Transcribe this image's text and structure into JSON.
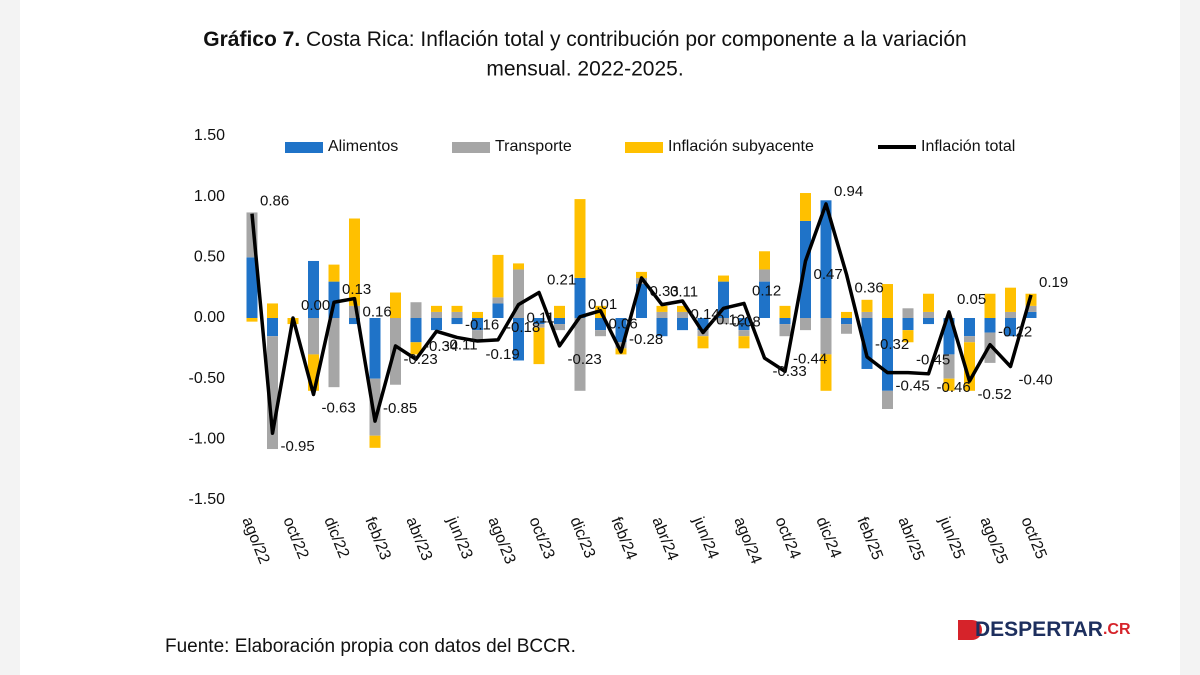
{
  "chart_data": {
    "type": "bar_line",
    "title_bold": "Gráfico 7.",
    "title": "Costa Rica: Inflación total y contribución por componente a la variación",
    "title_line2": "mensual. 2022-2025.",
    "source": "Fuente: Elaboración propia con datos del BCCR.",
    "logo": "DESPERTAR",
    "logo_suffix": ".CR",
    "categories": [
      "ago/22",
      null,
      "oct/22",
      null,
      "dic/22",
      null,
      "feb/23",
      null,
      "abr/23",
      null,
      "jun/23",
      null,
      "ago/23",
      null,
      "oct/23",
      null,
      "dic/23",
      null,
      "feb/24",
      null,
      "abr/24",
      null,
      "jun/24",
      null,
      "ago/24",
      null,
      "oct/24",
      null,
      "dic/24",
      null,
      "feb/25",
      null,
      "abr/25",
      null,
      "jun/25",
      null,
      "ago/25",
      null,
      "oct/25"
    ],
    "ylim": [
      -1.5,
      1.5
    ],
    "yticks": [
      {
        "value": 1.5,
        "label": "1.50"
      },
      {
        "value": 1.0,
        "label": "1.00"
      },
      {
        "value": 0.5,
        "label": "0.50"
      },
      {
        "value": 0,
        "label": "0.00"
      },
      {
        "value": -0.5,
        "label": "-0.50"
      },
      {
        "value": -1.0,
        "label": "-1.00"
      },
      {
        "value": -1.5,
        "label": "-1.50"
      }
    ],
    "series": [
      {
        "name": "Alimentos",
        "color": "#1f73c8",
        "kind": "bar",
        "values": [
          0.5,
          -0.15,
          0.0,
          0.47,
          0.3,
          -0.05,
          -0.5,
          0.0,
          -0.2,
          -0.1,
          -0.05,
          -0.1,
          0.12,
          -0.35,
          -0.05,
          -0.05,
          0.33,
          -0.1,
          -0.2,
          0.28,
          -0.15,
          -0.1,
          -0.1,
          0.3,
          -0.1,
          0.3,
          -0.05,
          0.8,
          0.97,
          -0.05,
          -0.42,
          -0.6,
          -0.1,
          -0.05,
          -0.3,
          -0.15,
          -0.12,
          -0.15,
          0.05
        ]
      },
      {
        "name": "Transporte",
        "color": "#a6a6a6",
        "kind": "bar",
        "values": [
          0.37,
          -0.93,
          0.0,
          -0.3,
          -0.57,
          0.1,
          -0.47,
          -0.55,
          0.13,
          0.05,
          0.05,
          -0.1,
          0.05,
          0.4,
          -0.03,
          -0.05,
          -0.6,
          -0.05,
          -0.05,
          0.05,
          0.05,
          0.05,
          -0.05,
          -0.05,
          -0.05,
          0.1,
          -0.1,
          -0.1,
          -0.3,
          -0.08,
          0.05,
          -0.15,
          0.08,
          0.05,
          -0.2,
          -0.05,
          -0.25,
          0.05,
          0.05
        ]
      },
      {
        "name": "Inflación subyacente",
        "color": "#ffc000",
        "kind": "bar",
        "values": [
          -0.03,
          0.12,
          -0.05,
          -0.3,
          0.14,
          0.72,
          -0.1,
          0.21,
          -0.1,
          0.05,
          0.05,
          0.05,
          0.35,
          0.05,
          -0.3,
          0.1,
          0.65,
          0.1,
          -0.05,
          0.05,
          0.05,
          0.05,
          -0.1,
          0.05,
          -0.1,
          0.15,
          0.1,
          0.23,
          -0.3,
          0.05,
          0.1,
          0.28,
          -0.1,
          0.15,
          -0.1,
          -0.4,
          0.2,
          0.2,
          0.1
        ]
      },
      {
        "name": "Inflación total",
        "color": "#000000",
        "kind": "line",
        "values": [
          0.86,
          -0.95,
          0.0,
          -0.63,
          0.13,
          0.16,
          -0.85,
          -0.23,
          -0.34,
          -0.11,
          -0.16,
          -0.19,
          -0.18,
          0.11,
          0.21,
          -0.23,
          0.01,
          0.06,
          -0.28,
          0.33,
          0.11,
          0.14,
          -0.12,
          0.08,
          0.12,
          -0.33,
          -0.44,
          0.47,
          0.94,
          0.36,
          -0.32,
          -0.45,
          -0.45,
          -0.46,
          0.05,
          -0.52,
          -0.22,
          -0.4,
          0.19
        ],
        "value_labels": [
          "0.86",
          "-0.95",
          "0.00",
          "-0.63",
          "0.13",
          "0.16",
          "-0.85",
          "-0.23",
          "-0.34",
          "-0.11",
          "-0.16",
          "-0.19",
          "-0.18",
          "0.11",
          "0.21",
          "-0.23",
          "0.01",
          "0.06",
          "-0.28",
          "0.33",
          "0.11",
          "0.14",
          "-0.12",
          "0.08",
          "0.12",
          "-0.33",
          "-0.44",
          "0.47",
          "0.94",
          "0.36",
          "-0.32",
          "-0.45",
          "-0.45",
          "-0.46",
          "0.05",
          "-0.52",
          "-0.22",
          "-0.40",
          "0.19"
        ]
      }
    ]
  }
}
